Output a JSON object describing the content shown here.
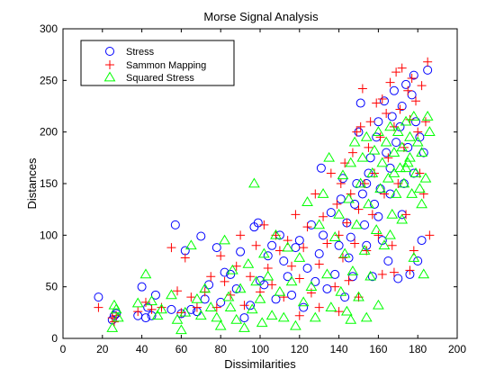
{
  "chart_data": {
    "type": "scatter",
    "title": "Morse Signal Analysis",
    "xlabel": "Dissimilarities",
    "ylabel": "Distances",
    "xlim": [
      0,
      200
    ],
    "ylim": [
      0,
      300
    ],
    "xticks": [
      "0",
      "20",
      "40",
      "60",
      "80",
      "100",
      "120",
      "140",
      "160",
      "180",
      "200"
    ],
    "yticks": [
      "0",
      "50",
      "100",
      "150",
      "200",
      "250",
      "300"
    ],
    "grid": false,
    "legend_position": "top-left",
    "series": [
      {
        "name": "Stress",
        "marker": "circle",
        "color": "#0000ff",
        "points": [
          [
            18,
            40
          ],
          [
            25,
            18
          ],
          [
            26,
            22
          ],
          [
            27,
            24
          ],
          [
            38,
            22
          ],
          [
            40,
            50
          ],
          [
            42,
            20
          ],
          [
            43,
            30
          ],
          [
            45,
            22
          ],
          [
            47,
            42
          ],
          [
            55,
            28
          ],
          [
            57,
            110
          ],
          [
            60,
            24
          ],
          [
            62,
            85
          ],
          [
            65,
            28
          ],
          [
            68,
            26
          ],
          [
            70,
            99
          ],
          [
            72,
            38
          ],
          [
            74,
            52
          ],
          [
            78,
            88
          ],
          [
            80,
            35
          ],
          [
            82,
            64
          ],
          [
            85,
            62
          ],
          [
            88,
            48
          ],
          [
            90,
            84
          ],
          [
            92,
            20
          ],
          [
            95,
            32
          ],
          [
            97,
            108
          ],
          [
            99,
            112
          ],
          [
            100,
            56
          ],
          [
            102,
            52
          ],
          [
            104,
            80
          ],
          [
            106,
            90
          ],
          [
            108,
            38
          ],
          [
            110,
            100
          ],
          [
            112,
            75
          ],
          [
            114,
            60
          ],
          [
            116,
            42
          ],
          [
            118,
            88
          ],
          [
            120,
            95
          ],
          [
            122,
            30
          ],
          [
            124,
            68
          ],
          [
            126,
            110
          ],
          [
            128,
            55
          ],
          [
            130,
            82
          ],
          [
            131,
            165
          ],
          [
            132,
            100
          ],
          [
            134,
            48
          ],
          [
            136,
            122
          ],
          [
            138,
            62
          ],
          [
            140,
            90
          ],
          [
            141,
            135
          ],
          [
            142,
            155
          ],
          [
            143,
            40
          ],
          [
            144,
            112
          ],
          [
            145,
            78
          ],
          [
            146,
            98
          ],
          [
            147,
            60
          ],
          [
            148,
            130
          ],
          [
            149,
            150
          ],
          [
            150,
            200
          ],
          [
            151,
            228
          ],
          [
            152,
            140
          ],
          [
            153,
            110
          ],
          [
            154,
            90
          ],
          [
            155,
            160
          ],
          [
            156,
            175
          ],
          [
            157,
            60
          ],
          [
            158,
            130
          ],
          [
            159,
            195
          ],
          [
            160,
            210
          ],
          [
            161,
            145
          ],
          [
            162,
            95
          ],
          [
            163,
            230
          ],
          [
            164,
            180
          ],
          [
            165,
            75
          ],
          [
            166,
            165
          ],
          [
            167,
            215
          ],
          [
            168,
            240
          ],
          [
            169,
            190
          ],
          [
            170,
            58
          ],
          [
            171,
            205
          ],
          [
            172,
            225
          ],
          [
            173,
            150
          ],
          [
            174,
            246
          ],
          [
            175,
            185
          ],
          [
            176,
            62
          ],
          [
            177,
            236
          ],
          [
            178,
            160
          ],
          [
            179,
            210
          ],
          [
            180,
            75
          ],
          [
            181,
            195
          ],
          [
            182,
            95
          ],
          [
            183,
            180
          ],
          [
            185,
            260
          ],
          [
            178,
            255
          ],
          [
            172,
            120
          ],
          [
            166,
            140
          ],
          [
            160,
            118
          ],
          [
            154,
            150
          ]
        ]
      },
      {
        "name": "Sammon Mapping",
        "marker": "plus",
        "color": "#ff0000",
        "points": [
          [
            18,
            30
          ],
          [
            25,
            20
          ],
          [
            26,
            16
          ],
          [
            27,
            22
          ],
          [
            38,
            26
          ],
          [
            42,
            35
          ],
          [
            45,
            28
          ],
          [
            50,
            30
          ],
          [
            55,
            88
          ],
          [
            58,
            46
          ],
          [
            60,
            25
          ],
          [
            62,
            78
          ],
          [
            65,
            40
          ],
          [
            68,
            30
          ],
          [
            72,
            45
          ],
          [
            75,
            60
          ],
          [
            78,
            30
          ],
          [
            80,
            80
          ],
          [
            82,
            55
          ],
          [
            85,
            42
          ],
          [
            88,
            70
          ],
          [
            90,
            100
          ],
          [
            92,
            32
          ],
          [
            95,
            60
          ],
          [
            98,
            90
          ],
          [
            100,
            45
          ],
          [
            102,
            110
          ],
          [
            104,
            68
          ],
          [
            106,
            52
          ],
          [
            108,
            100
          ],
          [
            110,
            85
          ],
          [
            112,
            40
          ],
          [
            114,
            95
          ],
          [
            116,
            70
          ],
          [
            118,
            120
          ],
          [
            120,
            58
          ],
          [
            122,
            88
          ],
          [
            124,
            108
          ],
          [
            126,
            44
          ],
          [
            128,
            140
          ],
          [
            130,
            72
          ],
          [
            132,
            118
          ],
          [
            134,
            92
          ],
          [
            136,
            160
          ],
          [
            138,
            50
          ],
          [
            139,
            130
          ],
          [
            140,
            100
          ],
          [
            141,
            150
          ],
          [
            142,
            78
          ],
          [
            143,
            170
          ],
          [
            144,
            112
          ],
          [
            145,
            56
          ],
          [
            146,
            140
          ],
          [
            147,
            180
          ],
          [
            148,
            92
          ],
          [
            149,
            200
          ],
          [
            150,
            125
          ],
          [
            151,
            205
          ],
          [
            152,
            242
          ],
          [
            153,
            150
          ],
          [
            154,
            85
          ],
          [
            155,
            185
          ],
          [
            156,
            210
          ],
          [
            157,
            120
          ],
          [
            158,
            160
          ],
          [
            159,
            228
          ],
          [
            160,
            100
          ],
          [
            161,
            195
          ],
          [
            162,
            232
          ],
          [
            163,
            140
          ],
          [
            164,
            218
          ],
          [
            165,
            175
          ],
          [
            166,
            248
          ],
          [
            167,
            90
          ],
          [
            168,
            205
          ],
          [
            169,
            258
          ],
          [
            170,
            150
          ],
          [
            171,
            222
          ],
          [
            172,
            262
          ],
          [
            173,
            185
          ],
          [
            174,
            120
          ],
          [
            175,
            240
          ],
          [
            176,
            212
          ],
          [
            177,
            252
          ],
          [
            178,
            85
          ],
          [
            179,
            230
          ],
          [
            180,
            200
          ],
          [
            181,
            160
          ],
          [
            182,
            245
          ],
          [
            183,
            140
          ],
          [
            184,
            210
          ],
          [
            185,
            268
          ],
          [
            186,
            100
          ],
          [
            176,
            66
          ],
          [
            168,
            64
          ],
          [
            162,
            62
          ],
          [
            150,
            40
          ],
          [
            140,
            26
          ],
          [
            130,
            30
          ],
          [
            120,
            22
          ]
        ]
      },
      {
        "name": "Squared Stress",
        "marker": "triangle",
        "color": "#00ff00",
        "points": [
          [
            25,
            10
          ],
          [
            26,
            32
          ],
          [
            27,
            28
          ],
          [
            28,
            20
          ],
          [
            38,
            34
          ],
          [
            42,
            62
          ],
          [
            45,
            36
          ],
          [
            48,
            22
          ],
          [
            50,
            28
          ],
          [
            55,
            42
          ],
          [
            58,
            18
          ],
          [
            60,
            8
          ],
          [
            62,
            25
          ],
          [
            65,
            90
          ],
          [
            68,
            38
          ],
          [
            70,
            22
          ],
          [
            72,
            48
          ],
          [
            75,
            30
          ],
          [
            78,
            20
          ],
          [
            80,
            12
          ],
          [
            82,
            95
          ],
          [
            84,
            40
          ],
          [
            85,
            30
          ],
          [
            86,
            66
          ],
          [
            88,
            18
          ],
          [
            90,
            48
          ],
          [
            92,
            10
          ],
          [
            94,
            72
          ],
          [
            96,
            28
          ],
          [
            97,
            150
          ],
          [
            98,
            55
          ],
          [
            100,
            38
          ],
          [
            101,
            15
          ],
          [
            102,
            82
          ],
          [
            104,
            60
          ],
          [
            106,
            22
          ],
          [
            108,
            100
          ],
          [
            110,
            45
          ],
          [
            112,
            20
          ],
          [
            114,
            88
          ],
          [
            116,
            55
          ],
          [
            118,
            12
          ],
          [
            120,
            78
          ],
          [
            122,
            35
          ],
          [
            124,
            132
          ],
          [
            126,
            50
          ],
          [
            128,
            20
          ],
          [
            130,
            110
          ],
          [
            132,
            140
          ],
          [
            134,
            62
          ],
          [
            135,
            175
          ],
          [
            136,
            30
          ],
          [
            138,
            98
          ],
          [
            140,
            120
          ],
          [
            141,
            45
          ],
          [
            142,
            158
          ],
          [
            143,
            82
          ],
          [
            144,
            26
          ],
          [
            145,
            135
          ],
          [
            146,
            170
          ],
          [
            147,
            65
          ],
          [
            148,
            190
          ],
          [
            149,
            110
          ],
          [
            150,
            40
          ],
          [
            151,
            150
          ],
          [
            152,
            175
          ],
          [
            153,
            85
          ],
          [
            154,
            195
          ],
          [
            155,
            130
          ],
          [
            156,
            60
          ],
          [
            157,
            160
          ],
          [
            158,
            182
          ],
          [
            159,
            105
          ],
          [
            160,
            200
          ],
          [
            161,
            145
          ],
          [
            162,
            170
          ],
          [
            163,
            90
          ],
          [
            164,
            190
          ],
          [
            165,
            155
          ],
          [
            166,
            205
          ],
          [
            167,
            120
          ],
          [
            168,
            180
          ],
          [
            169,
            140
          ],
          [
            170,
            200
          ],
          [
            171,
            165
          ],
          [
            172,
            185
          ],
          [
            173,
            150
          ],
          [
            174,
            210
          ],
          [
            175,
            170
          ],
          [
            176,
            195
          ],
          [
            177,
            140
          ],
          [
            178,
            215
          ],
          [
            179,
            160
          ],
          [
            180,
            190
          ],
          [
            181,
            145
          ],
          [
            182,
            180
          ],
          [
            183,
            62
          ],
          [
            184,
            155
          ],
          [
            185,
            215
          ],
          [
            178,
            78
          ],
          [
            172,
            115
          ],
          [
            166,
            100
          ],
          [
            160,
            32
          ],
          [
            154,
            20
          ],
          [
            146,
            18
          ],
          [
            174,
            165
          ],
          [
            182,
            130
          ],
          [
            176,
            175
          ],
          [
            168,
            160
          ],
          [
            186,
            200
          ]
        ]
      }
    ]
  }
}
